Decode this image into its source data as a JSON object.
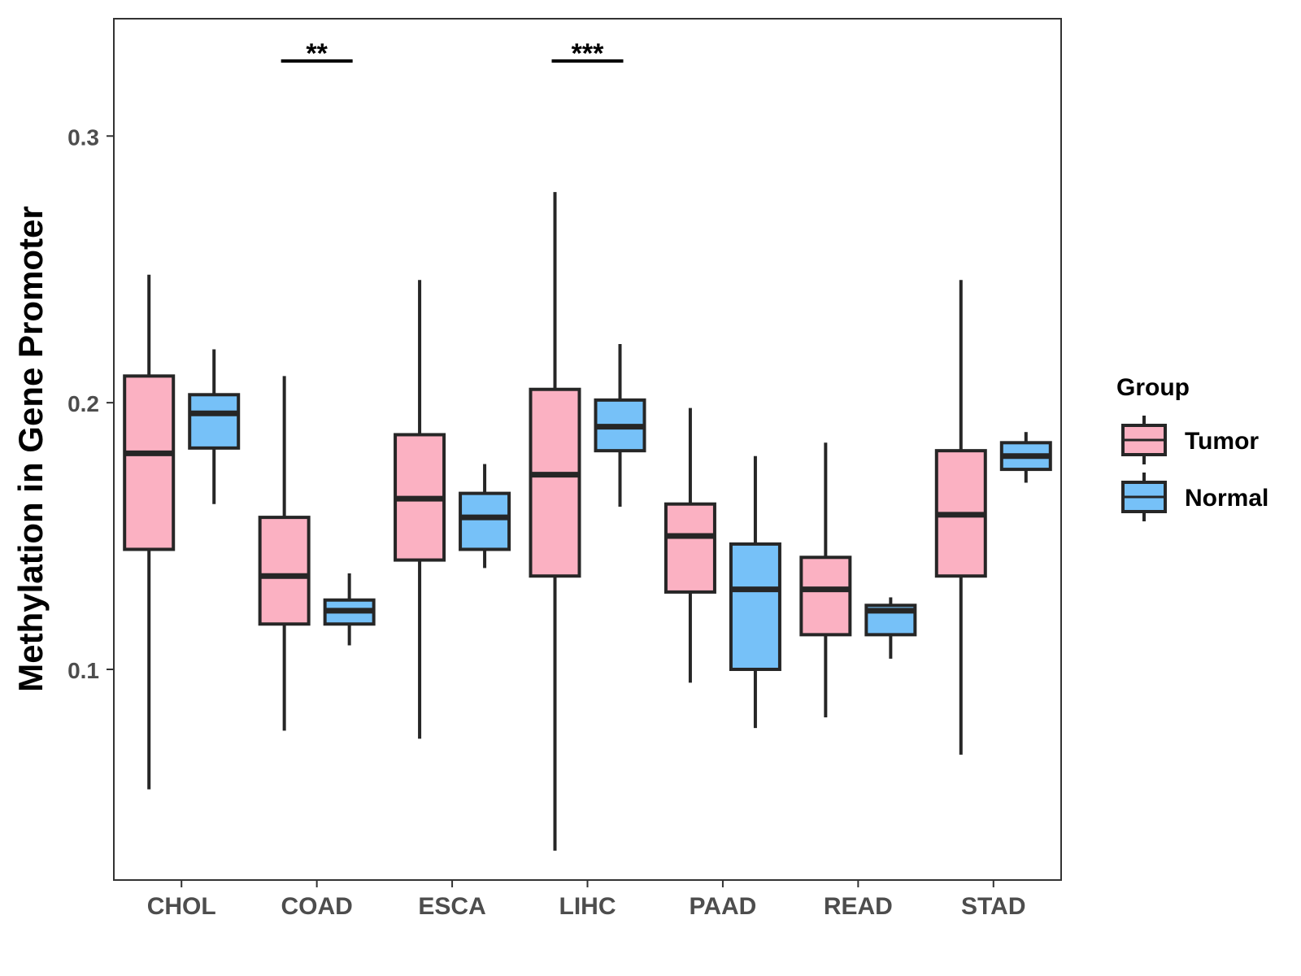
{
  "chart_data": {
    "type": "boxplot",
    "title": "",
    "xlabel": "",
    "ylabel": "Methylation in Gene Promoter",
    "ylim": [
      0.021,
      0.344
    ],
    "yticks": [
      "0.1",
      "0.2",
      "0.3"
    ],
    "ytick_values": [
      0.1,
      0.2,
      0.3
    ],
    "categories": [
      "CHOL",
      "COAD",
      "ESCA",
      "LIHC",
      "PAAD",
      "READ",
      "STAD"
    ],
    "legend": {
      "title": "Group",
      "position": "right",
      "items": [
        {
          "label": "Tumor",
          "color": "#FBB1C2"
        },
        {
          "label": "Normal",
          "color": "#76C1F8"
        }
      ]
    },
    "series": [
      {
        "name": "Tumor",
        "color": "#FBB1C2",
        "boxes": [
          {
            "min": 0.055,
            "q1": 0.145,
            "median": 0.181,
            "q3": 0.21,
            "max": 0.248
          },
          {
            "min": 0.077,
            "q1": 0.117,
            "median": 0.135,
            "q3": 0.157,
            "max": 0.21
          },
          {
            "min": 0.074,
            "q1": 0.141,
            "median": 0.164,
            "q3": 0.188,
            "max": 0.246
          },
          {
            "min": 0.032,
            "q1": 0.135,
            "median": 0.173,
            "q3": 0.205,
            "max": 0.279
          },
          {
            "min": 0.095,
            "q1": 0.129,
            "median": 0.15,
            "q3": 0.162,
            "max": 0.198
          },
          {
            "min": 0.082,
            "q1": 0.113,
            "median": 0.13,
            "q3": 0.142,
            "max": 0.185
          },
          {
            "min": 0.068,
            "q1": 0.135,
            "median": 0.158,
            "q3": 0.182,
            "max": 0.246
          }
        ]
      },
      {
        "name": "Normal",
        "color": "#76C1F8",
        "boxes": [
          {
            "min": 0.162,
            "q1": 0.183,
            "median": 0.196,
            "q3": 0.203,
            "max": 0.22
          },
          {
            "min": 0.109,
            "q1": 0.117,
            "median": 0.122,
            "q3": 0.126,
            "max": 0.136
          },
          {
            "min": 0.138,
            "q1": 0.145,
            "median": 0.157,
            "q3": 0.166,
            "max": 0.177
          },
          {
            "min": 0.161,
            "q1": 0.182,
            "median": 0.191,
            "q3": 0.201,
            "max": 0.222
          },
          {
            "min": 0.078,
            "q1": 0.1,
            "median": 0.13,
            "q3": 0.147,
            "max": 0.18
          },
          {
            "min": 0.104,
            "q1": 0.113,
            "median": 0.122,
            "q3": 0.124,
            "max": 0.127
          },
          {
            "min": 0.17,
            "q1": 0.175,
            "median": 0.18,
            "q3": 0.185,
            "max": 0.189
          }
        ]
      }
    ],
    "significance": [
      {
        "category": "COAD",
        "label": "**"
      },
      {
        "category": "LIHC",
        "label": "***"
      }
    ]
  }
}
